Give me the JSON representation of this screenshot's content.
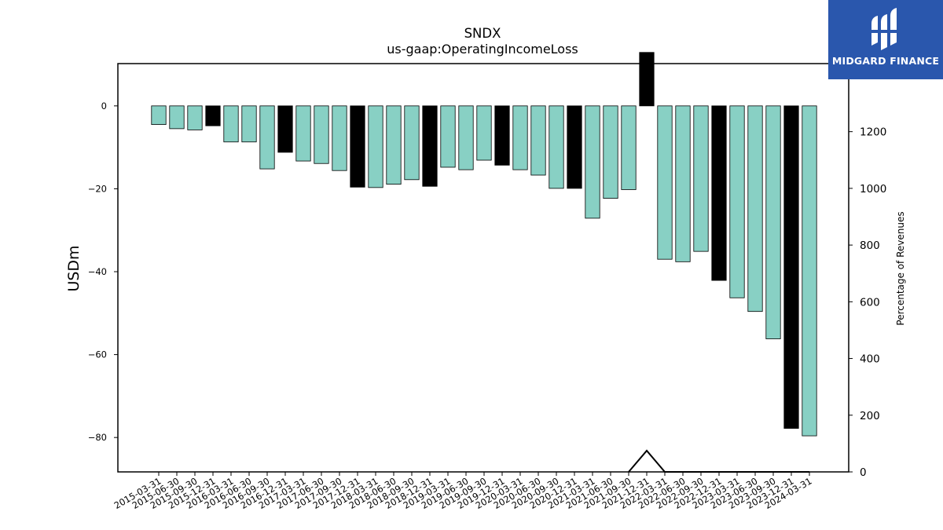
{
  "chart_data": {
    "type": "bar",
    "title": "SNDX",
    "subtitle": "us-gaap:OperatingIncomeLoss",
    "ylabel": "USDm",
    "y2label": "Percentage of Revenues",
    "ylim": [
      -88.3,
      10.2
    ],
    "y2lim": [
      0,
      1440
    ],
    "yticks": [
      0,
      -20,
      -40,
      -60,
      -80
    ],
    "y2ticks": [
      0,
      200,
      400,
      600,
      800,
      1000,
      1200
    ],
    "grid": false,
    "bar_colors": {
      "quarter": "#88d0c4",
      "year_end": "#000000"
    },
    "categories": [
      "2015-03-31",
      "2015-06-30",
      "2015-09-30",
      "2015-12-31",
      "2016-03-31",
      "2016-06-30",
      "2016-09-30",
      "2016-12-31",
      "2017-03-31",
      "2017-06-30",
      "2017-09-30",
      "2017-12-31",
      "2018-03-31",
      "2018-06-30",
      "2018-09-30",
      "2018-12-31",
      "2019-03-31",
      "2019-06-30",
      "2019-09-30",
      "2019-12-31",
      "2020-03-31",
      "2020-06-30",
      "2020-09-30",
      "2020-12-31",
      "2021-03-31",
      "2021-06-30",
      "2021-09-30",
      "2021-12-31",
      "2022-03-31",
      "2022-06-30",
      "2022-09-30",
      "2022-12-31",
      "2023-03-31",
      "2023-06-30",
      "2023-09-30",
      "2023-12-31",
      "2024-03-31"
    ],
    "values": [
      -4.5,
      -5.5,
      -5.8,
      -4.8,
      -8.7,
      -8.7,
      -15.2,
      -11.2,
      -13.3,
      -13.9,
      -15.6,
      -19.6,
      -19.7,
      -18.9,
      -17.8,
      -19.4,
      -14.8,
      -15.4,
      -13.1,
      -14.3,
      -15.4,
      -16.7,
      -19.9,
      -19.9,
      -27.1,
      -22.3,
      -20.2,
      12.9,
      -37.0,
      -37.6,
      -35.1,
      -42.1,
      -46.3,
      -49.6,
      -56.2,
      -77.8,
      -79.6
    ],
    "year_end_flags": [
      0,
      0,
      0,
      1,
      0,
      0,
      0,
      1,
      0,
      0,
      0,
      1,
      0,
      0,
      0,
      1,
      0,
      0,
      0,
      1,
      0,
      0,
      0,
      1,
      0,
      0,
      0,
      1,
      0,
      0,
      0,
      1,
      0,
      0,
      0,
      1,
      0
    ],
    "percentage_series": {
      "values": [
        null,
        null,
        null,
        null,
        null,
        null,
        null,
        null,
        null,
        null,
        null,
        null,
        null,
        null,
        null,
        null,
        null,
        null,
        null,
        null,
        null,
        null,
        null,
        null,
        null,
        null,
        0,
        75,
        0,
        0,
        0,
        0,
        0,
        0,
        0,
        0,
        0
      ]
    }
  },
  "logo": {
    "text": "MIDGARD FINANCE"
  }
}
